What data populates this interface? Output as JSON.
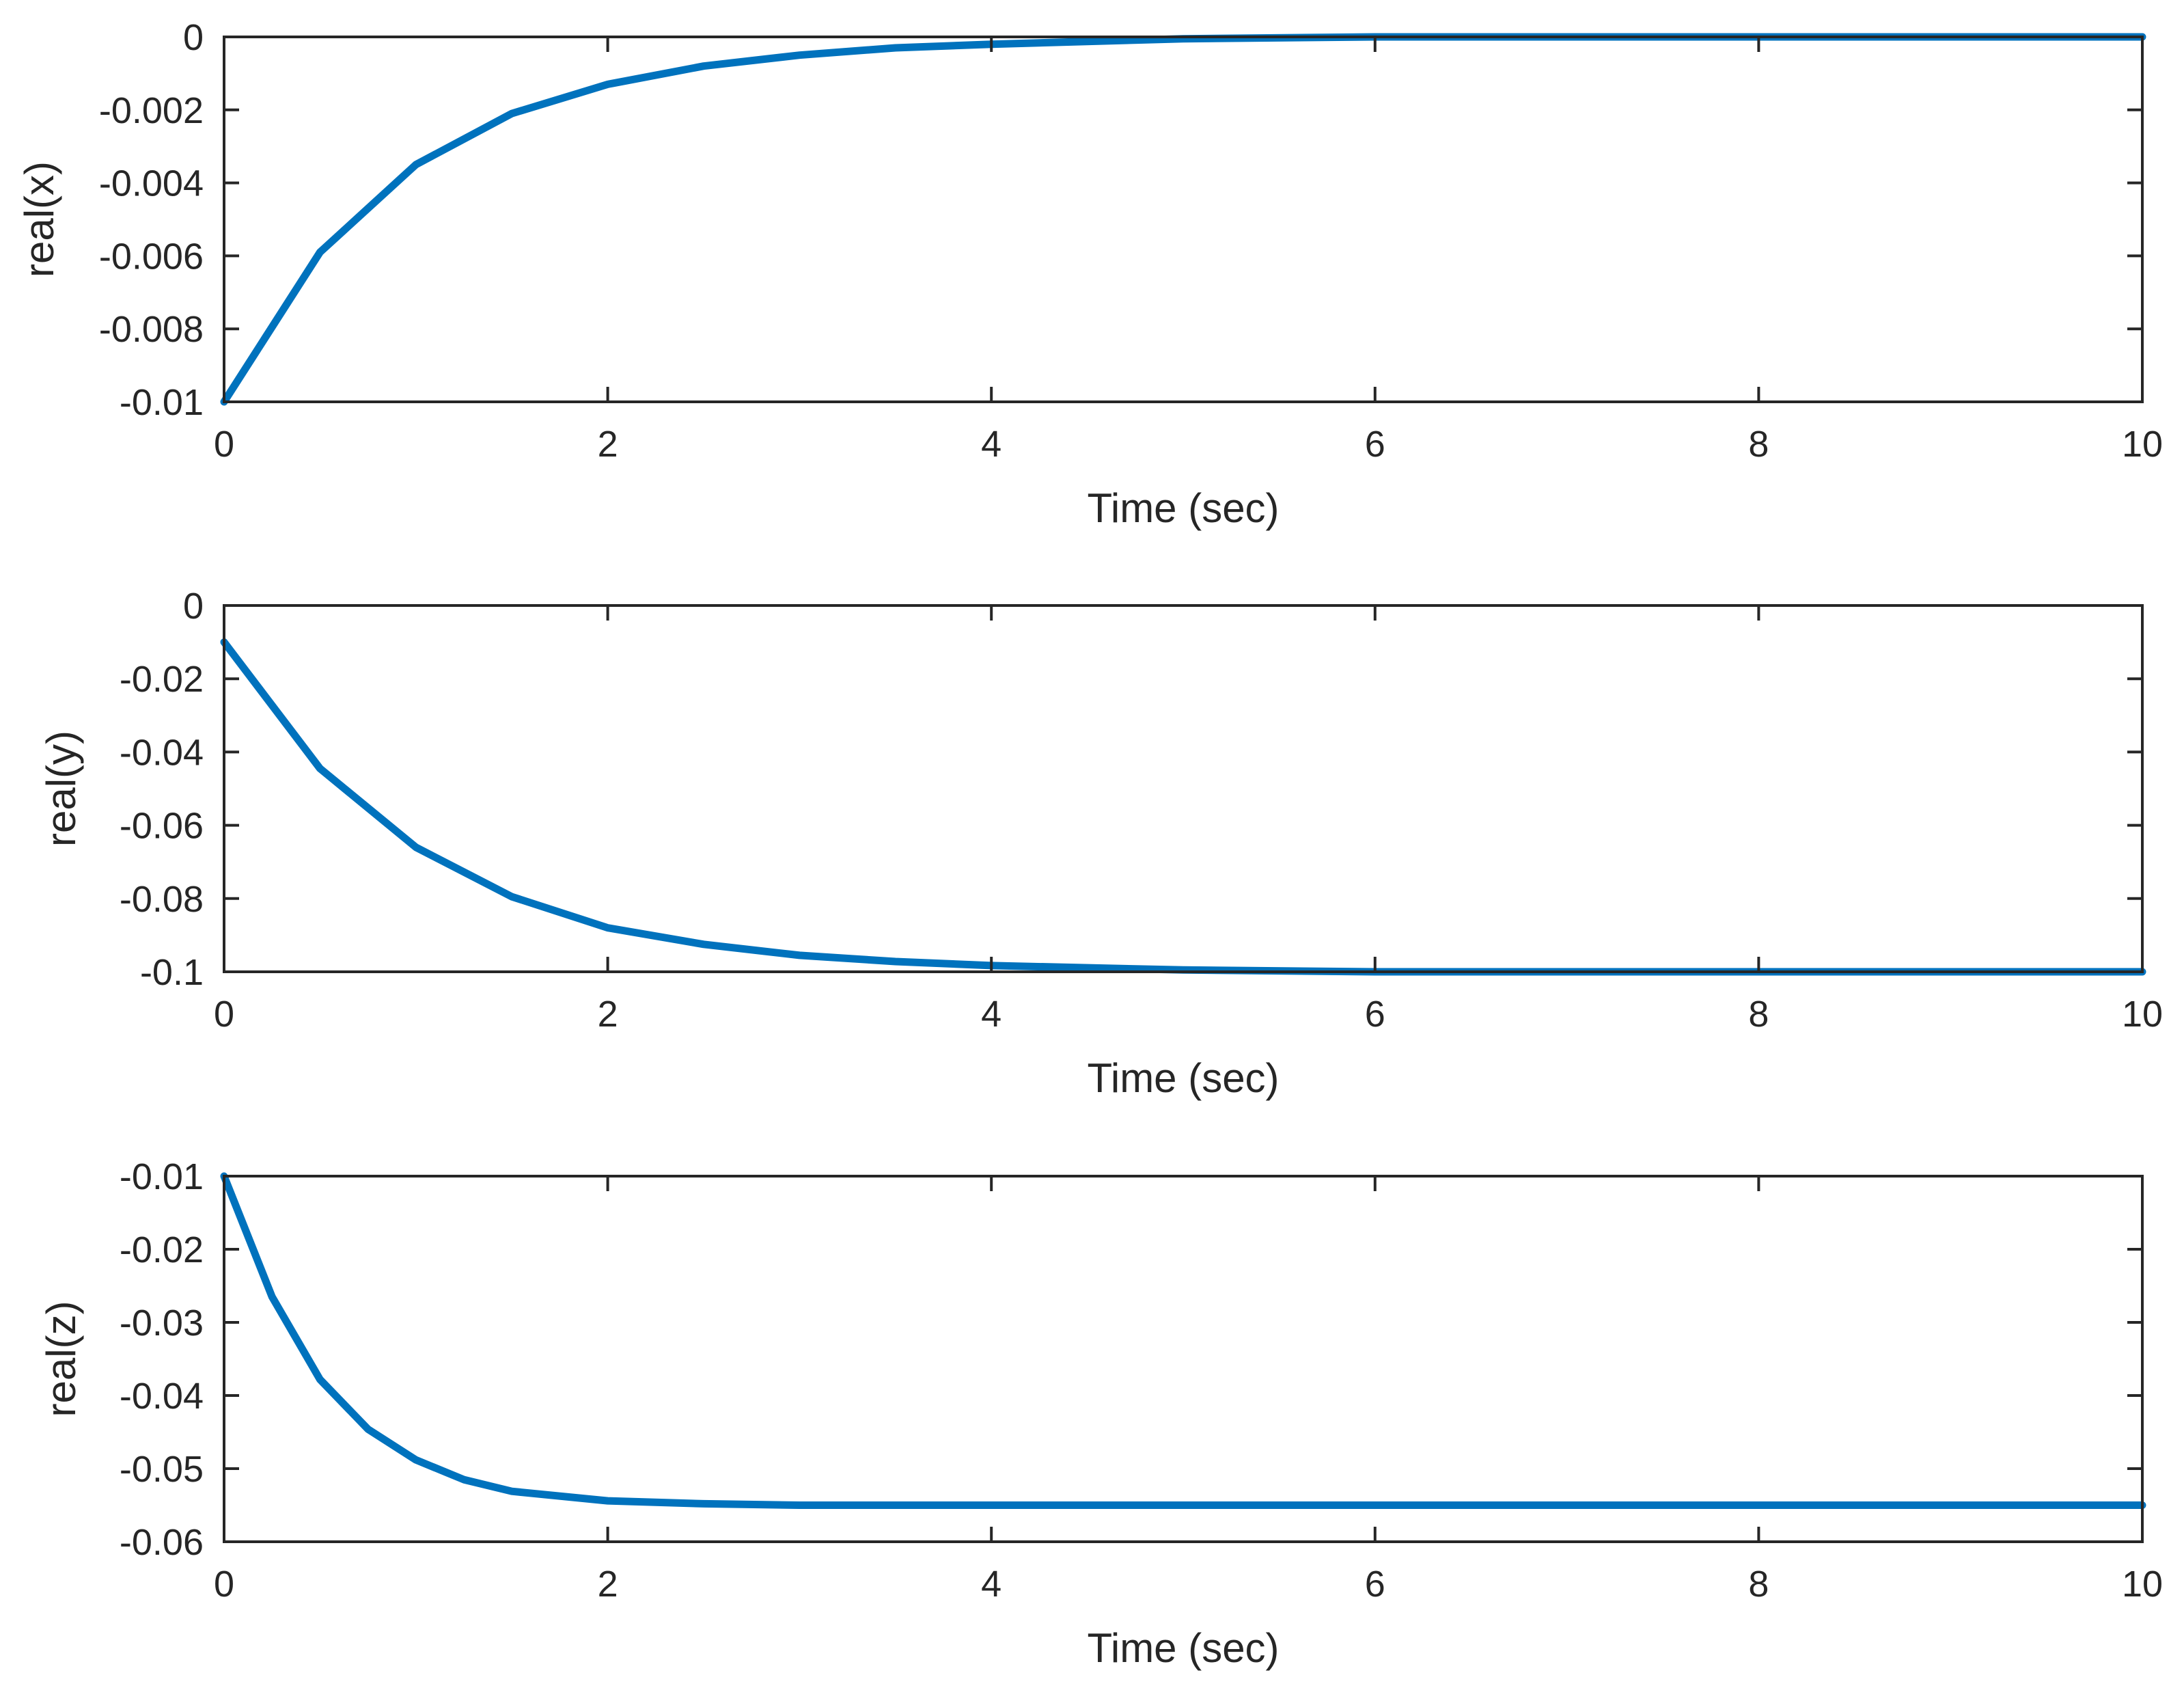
{
  "colors": {
    "line": "#0072BD",
    "axes": "#262626",
    "background": "#ffffff"
  },
  "chart_data": [
    {
      "type": "line",
      "xlabel": "Time (sec)",
      "ylabel": "real(x)",
      "xlim": [
        0,
        10
      ],
      "ylim": [
        -0.01,
        0
      ],
      "xticks": [
        0,
        2,
        4,
        6,
        8,
        10
      ],
      "yticks": [
        0,
        -0.002,
        -0.004,
        -0.006,
        -0.008,
        -0.01
      ],
      "ytick_labels": [
        "0",
        "-0.002",
        "-0.004",
        "-0.006",
        "-0.008",
        "-0.01"
      ],
      "grid": false,
      "series": [
        {
          "x": [
            0,
            0.5,
            1,
            1.5,
            2,
            2.5,
            3,
            3.5,
            4,
            5,
            6,
            7,
            8,
            9,
            10
          ],
          "y": [
            -0.01,
            -0.0059,
            -0.0035,
            -0.0021,
            -0.0013,
            -0.0008,
            -0.0005,
            -0.0003,
            -0.0002,
            -5e-05,
            0,
            0,
            0,
            0,
            0
          ]
        }
      ]
    },
    {
      "type": "line",
      "xlabel": "Time (sec)",
      "ylabel": "real(y)",
      "xlim": [
        0,
        10
      ],
      "ylim": [
        -0.1,
        0
      ],
      "xticks": [
        0,
        2,
        4,
        6,
        8,
        10
      ],
      "yticks": [
        0,
        -0.02,
        -0.04,
        -0.06,
        -0.08,
        -0.1
      ],
      "ytick_labels": [
        "0",
        "-0.02",
        "-0.04",
        "-0.06",
        "-0.08",
        "-0.1"
      ],
      "grid": false,
      "series": [
        {
          "x": [
            0,
            0.5,
            1,
            1.5,
            2,
            2.5,
            3,
            3.5,
            4,
            5,
            6,
            7,
            8,
            9,
            10
          ],
          "y": [
            -0.01,
            -0.0445,
            -0.066,
            -0.0795,
            -0.088,
            -0.0925,
            -0.0955,
            -0.0972,
            -0.0983,
            -0.0995,
            -0.1,
            -0.1,
            -0.1,
            -0.1,
            -0.1
          ]
        }
      ]
    },
    {
      "type": "line",
      "xlabel": "Time (sec)",
      "ylabel": "real(z)",
      "xlim": [
        0,
        10
      ],
      "ylim": [
        -0.06,
        -0.01
      ],
      "xticks": [
        0,
        2,
        4,
        6,
        8,
        10
      ],
      "yticks": [
        -0.01,
        -0.02,
        -0.03,
        -0.04,
        -0.05,
        -0.06
      ],
      "ytick_labels": [
        "-0.01",
        "-0.02",
        "-0.03",
        "-0.04",
        "-0.05",
        "-0.06"
      ],
      "grid": false,
      "series": [
        {
          "x": [
            0,
            0.25,
            0.5,
            0.75,
            1,
            1.25,
            1.5,
            2,
            2.5,
            3,
            4,
            5,
            6,
            7,
            8,
            9,
            10
          ],
          "y": [
            -0.01,
            -0.0265,
            -0.0378,
            -0.0446,
            -0.0488,
            -0.0515,
            -0.0531,
            -0.0544,
            -0.0548,
            -0.055,
            -0.055,
            -0.055,
            -0.055,
            -0.055,
            -0.055,
            -0.055,
            -0.055
          ]
        }
      ]
    }
  ]
}
